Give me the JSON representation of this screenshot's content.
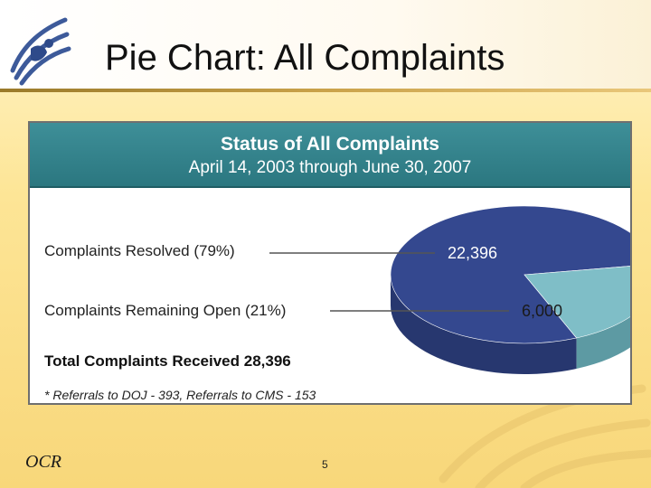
{
  "slide": {
    "title": "Pie Chart: All Complaints",
    "footer_left": "OCR",
    "page_number": "5"
  },
  "colors": {
    "resolved": "#34488f",
    "open": "#7fbec7",
    "header": "#2f7f88"
  },
  "chart_data": {
    "type": "pie",
    "title": "Status of All Complaints",
    "subtitle": "April 14, 2003 through June 30, 2007",
    "slices": [
      {
        "label": "Complaints Resolved (79%)",
        "value": 22396,
        "value_label": "22,396"
      },
      {
        "label": "Complaints Remaining Open (21%)",
        "value": 6000,
        "value_label": "6,000"
      }
    ],
    "total_label": "Total Complaints Received 28,396",
    "footnote": "* Referrals to DOJ - 393, Referrals to CMS - 153"
  }
}
